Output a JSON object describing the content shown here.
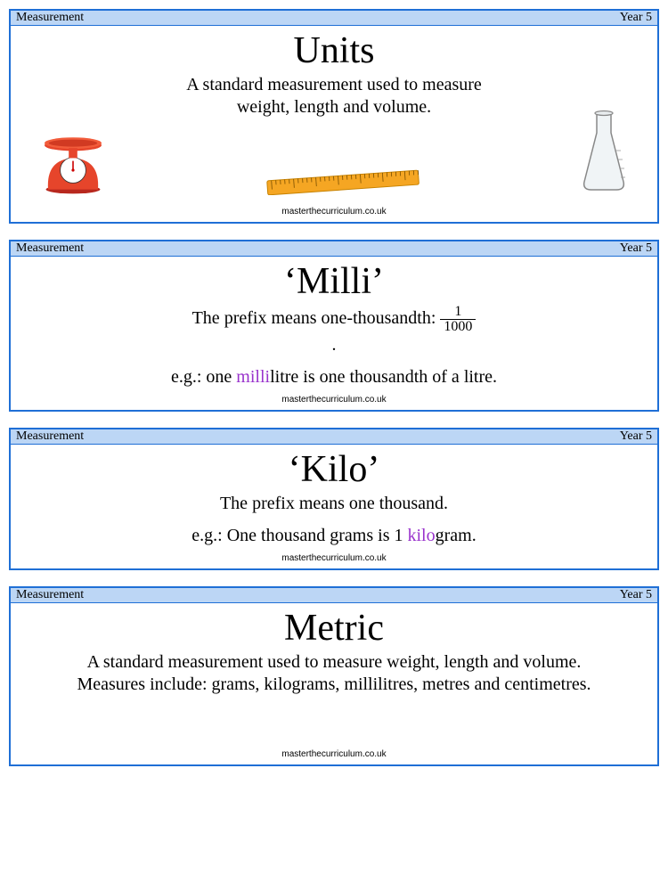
{
  "site_footer": "masterthecurriculum.co.uk",
  "colors": {
    "border": "#1f6fd6",
    "header_bg": "#bcd6f5",
    "header_text": "#000000",
    "highlight": "#9932cc"
  },
  "cards": [
    {
      "topic": "Measurement",
      "year": "Year 5",
      "title": "Units",
      "desc_html": "A standard measurement used to measure<br>weight, length and volume.",
      "has_icons": true
    },
    {
      "topic": "Measurement",
      "year": "Year 5",
      "title": "‘Milli’",
      "desc_html": "The prefix means one-thousandth: <span class=\"frac\"><span class=\"num\">1</span><span class=\"den\">1000</span></span><br>.",
      "example_html": "e.g.: one <span class=\"highlight\">milli</span>litre is one thousandth of a litre."
    },
    {
      "topic": "Measurement",
      "year": "Year 5",
      "title": "‘Kilo’",
      "desc_html": "The prefix means one thousand.",
      "example_html": "e.g.: One thousand grams is 1 <span class=\"highlight\">kilo</span>gram."
    },
    {
      "topic": "Measurement",
      "year": "Year 5",
      "title": "Metric",
      "desc_html": "A standard measurement used to measure weight, length and volume.<br>Measures include: grams, kilograms, millilitres, metres and centimetres.",
      "extra_footer_space": true
    }
  ]
}
